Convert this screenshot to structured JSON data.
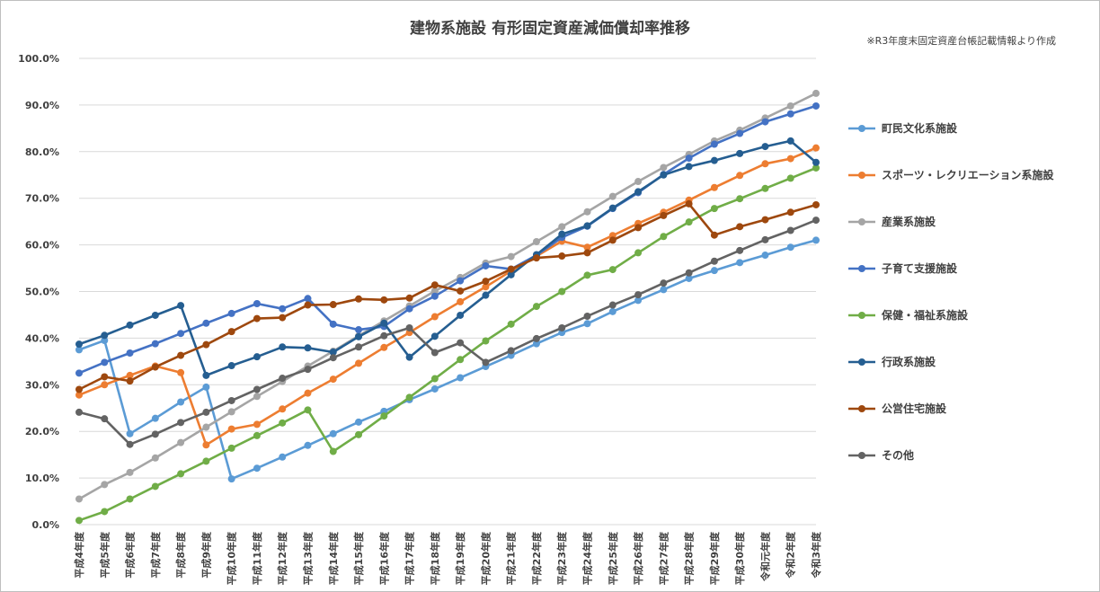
{
  "chart_data": {
    "type": "line",
    "title": "建物系施設 有形固定資産減価償却率推移",
    "note": "※R3年度末固定資産台帳記載情報より作成",
    "xlabel": "",
    "ylabel": "",
    "ylim": [
      0,
      100
    ],
    "y_unit": "%",
    "yticks": [
      "0.0%",
      "10.0%",
      "20.0%",
      "30.0%",
      "40.0%",
      "50.0%",
      "60.0%",
      "70.0%",
      "80.0%",
      "90.0%",
      "100.0%"
    ],
    "grid": true,
    "legend_position": "right",
    "categories": [
      "平成4年度",
      "平成5年度",
      "平成6年度",
      "平成7年度",
      "平成8年度",
      "平成9年度",
      "平成10年度",
      "平成11年度",
      "平成12年度",
      "平成13年度",
      "平成14年度",
      "平成15年度",
      "平成16年度",
      "平成17年度",
      "平成18年度",
      "平成19年度",
      "平成20年度",
      "平成21年度",
      "平成22年度",
      "平成23年度",
      "平成24年度",
      "平成25年度",
      "平成26年度",
      "平成27年度",
      "平成28年度",
      "平成29年度",
      "平成30年度",
      "令和元年度",
      "令和2年度",
      "令和3年度"
    ],
    "series": [
      {
        "name": "町民文化系施設",
        "color": "#5b9bd5",
        "values": [
          37.5,
          39.5,
          19.5,
          22.8,
          26.3,
          29.5,
          9.8,
          12.1,
          14.5,
          17.0,
          19.5,
          22.0,
          24.3,
          26.8,
          29.1,
          31.5,
          33.9,
          36.3,
          38.8,
          41.2,
          43.1,
          45.7,
          48.1,
          50.4,
          52.8,
          54.5,
          56.2,
          57.8,
          59.5,
          61.0
        ]
      },
      {
        "name": "スポーツ・レクリエーション系施設",
        "color": "#ed7d31",
        "values": [
          27.8,
          30.0,
          32.0,
          34.0,
          32.6,
          17.1,
          20.5,
          21.5,
          24.8,
          28.2,
          31.2,
          34.6,
          38.0,
          41.2,
          44.6,
          47.8,
          51.0,
          54.4,
          57.6,
          60.8,
          59.5,
          62.0,
          64.6,
          67.0,
          69.6,
          72.3,
          74.9,
          77.4,
          78.5,
          80.8
        ]
      },
      {
        "name": "産業系施設",
        "color": "#a5a5a5",
        "values": [
          5.5,
          8.6,
          11.2,
          14.3,
          17.6,
          20.9,
          24.2,
          27.5,
          30.7,
          34.0,
          37.2,
          40.5,
          43.7,
          46.9,
          50.1,
          53.0,
          56.1,
          57.5,
          60.7,
          63.9,
          67.1,
          70.4,
          73.6,
          76.6,
          79.4,
          82.3,
          84.6,
          87.2,
          89.8,
          92.5
        ]
      },
      {
        "name": "子育て支援施設",
        "color": "#4472c4",
        "values": [
          32.5,
          34.8,
          36.8,
          38.8,
          41.0,
          43.2,
          45.3,
          47.4,
          46.3,
          48.5,
          43.0,
          41.8,
          42.5,
          46.3,
          49.0,
          52.3,
          55.5,
          54.8,
          57.8,
          61.6,
          64.0,
          67.8,
          71.2,
          75.1,
          78.6,
          81.6,
          83.9,
          86.4,
          88.1,
          89.8
        ]
      },
      {
        "name": "保健・福祉系施設",
        "color": "#70ad47",
        "values": [
          0.9,
          2.8,
          5.5,
          8.2,
          10.9,
          13.6,
          16.4,
          19.1,
          21.8,
          24.6,
          15.7,
          19.3,
          23.3,
          27.3,
          31.3,
          35.4,
          39.4,
          43.0,
          46.8,
          50.0,
          53.5,
          54.7,
          58.3,
          61.8,
          64.9,
          67.8,
          69.9,
          72.1,
          74.3,
          76.5
        ]
      },
      {
        "name": "行政系施設",
        "color": "#255e91",
        "values": [
          38.7,
          40.6,
          42.8,
          44.9,
          47.0,
          32.0,
          34.1,
          36.0,
          38.1,
          37.9,
          37.0,
          40.3,
          43.2,
          35.9,
          40.4,
          44.9,
          49.2,
          53.6,
          57.9,
          62.3,
          64.1,
          67.9,
          71.4,
          75.0,
          76.8,
          78.1,
          79.6,
          81.1,
          82.3,
          77.7
        ]
      },
      {
        "name": "公営住宅施設",
        "color": "#9e480e",
        "values": [
          29.0,
          31.7,
          30.8,
          33.8,
          36.3,
          38.6,
          41.4,
          44.2,
          44.4,
          47.1,
          47.2,
          48.4,
          48.2,
          48.6,
          51.4,
          50.1,
          52.2,
          54.8,
          57.2,
          57.6,
          58.3,
          61.0,
          63.7,
          66.3,
          68.8,
          62.1,
          63.9,
          65.4,
          67.0,
          68.6
        ]
      },
      {
        "name": "その他",
        "color": "#636363",
        "values": [
          24.1,
          22.7,
          17.2,
          19.4,
          21.9,
          24.1,
          26.6,
          29.0,
          31.4,
          33.3,
          35.8,
          38.1,
          40.5,
          42.2,
          36.9,
          39.0,
          34.8,
          37.3,
          39.9,
          42.2,
          44.7,
          47.1,
          49.3,
          51.8,
          54.0,
          56.5,
          58.8,
          61.1,
          63.1,
          65.3
        ]
      }
    ]
  }
}
